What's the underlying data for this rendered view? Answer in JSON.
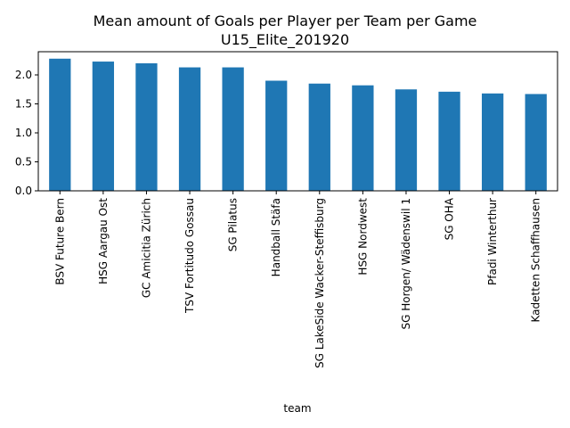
{
  "chart_data": {
    "type": "bar",
    "title": "Mean amount of Goals per Player per Team per Game",
    "subtitle": "U15_Elite_201920",
    "xlabel": "team",
    "ylabel": "",
    "ylim": [
      0,
      2.4
    ],
    "yticks": [
      "0.0",
      "0.5",
      "1.0",
      "1.5",
      "2.0"
    ],
    "categories": [
      "BSV Future Bern",
      "HSG Aargau Ost",
      "GC Amicitia Zürich",
      "TSV Fortitudo Gossau",
      "SG Pilatus",
      "Handball Stäfa",
      "SG LakeSide Wacker-Steffisburg",
      "HSG Nordwest",
      "SG Horgen/ Wädenswil 1",
      "SG OHA",
      "Pfadi Winterthur",
      "Kadetten Schaffhausen"
    ],
    "values": [
      2.28,
      2.23,
      2.2,
      2.13,
      2.13,
      1.9,
      1.85,
      1.82,
      1.75,
      1.71,
      1.68,
      1.67
    ],
    "bar_color": "#1f77b4",
    "grid": false,
    "legend": "none"
  }
}
